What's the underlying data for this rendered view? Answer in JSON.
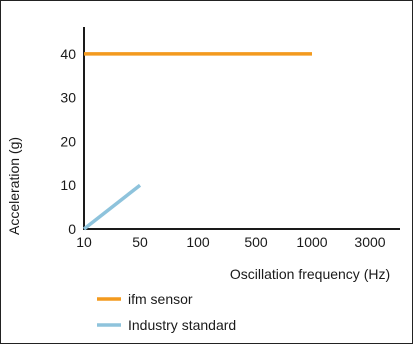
{
  "chart_data": {
    "type": "line",
    "xlabel": "Oscillation frequency (Hz)",
    "ylabel": "Acceleration (g)",
    "x_scale": "categorical",
    "categories": [
      "10",
      "50",
      "100",
      "500",
      "1000",
      "3000"
    ],
    "y_ticks": [
      0,
      10,
      20,
      30,
      40
    ],
    "ylim": [
      0,
      45
    ],
    "grid": false,
    "legend_position": "bottom-left",
    "series": [
      {
        "name": "ifm sensor",
        "color": "#f39a1e",
        "x": [
          "10",
          "1000"
        ],
        "y": [
          40,
          40
        ]
      },
      {
        "name": "Industry standard",
        "color": "#8ec3dc",
        "x": [
          "10",
          "50"
        ],
        "y": [
          0,
          10
        ]
      }
    ]
  }
}
